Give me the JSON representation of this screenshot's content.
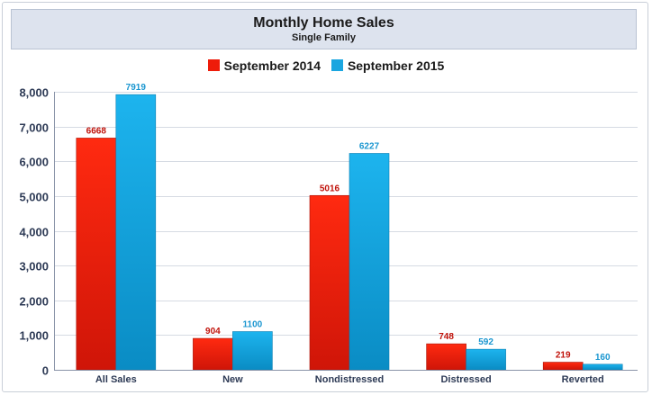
{
  "chart_data": {
    "type": "bar",
    "title": "Monthly Home Sales",
    "subtitle": "Single Family",
    "categories": [
      "All Sales",
      "New",
      "Nondistressed",
      "Distressed",
      "Reverted"
    ],
    "series": [
      {
        "name": "September 2014",
        "color": "#ee1c0a",
        "label_color": "#c0120a",
        "values": [
          6668,
          904,
          5016,
          748,
          219
        ]
      },
      {
        "name": "September 2015",
        "color": "#1aa6e0",
        "label_color": "#1a96d0",
        "values": [
          7919,
          1100,
          6227,
          592,
          160
        ]
      }
    ],
    "ylim": [
      0,
      8000
    ],
    "yticks": [
      {
        "value": 0,
        "label": "0"
      },
      {
        "value": 1000,
        "label": "1,000"
      },
      {
        "value": 2000,
        "label": "2,000"
      },
      {
        "value": 3000,
        "label": "3,000"
      },
      {
        "value": 4000,
        "label": "4,000"
      },
      {
        "value": 5000,
        "label": "5,000"
      },
      {
        "value": 6000,
        "label": "6,000"
      },
      {
        "value": 7000,
        "label": "7,000"
      },
      {
        "value": 8000,
        "label": "8,000"
      }
    ],
    "grid": true,
    "legend": "top-center",
    "xlabel": "",
    "ylabel": ""
  }
}
